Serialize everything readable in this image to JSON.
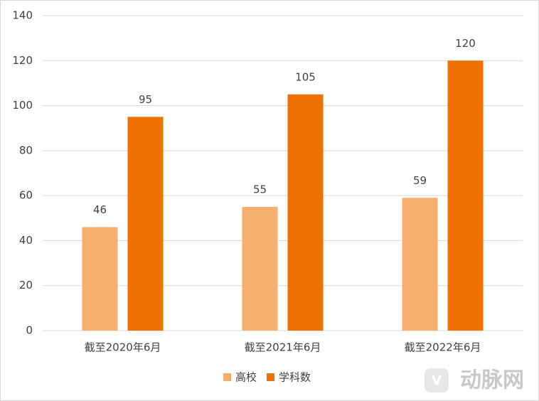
{
  "chart_data": {
    "type": "bar",
    "categories": [
      "截至2020年6月",
      "截至2021年6月",
      "截至2022年6月"
    ],
    "series": [
      {
        "name": "高校",
        "color": "#f6ae6e",
        "values": [
          46,
          55,
          59
        ]
      },
      {
        "name": "学科数",
        "color": "#ed7103",
        "values": [
          95,
          105,
          120
        ]
      }
    ],
    "ylim": [
      0,
      140
    ],
    "yticks": [
      0,
      20,
      40,
      60,
      80,
      100,
      120,
      140
    ],
    "grid": true,
    "legend": "bottom",
    "watermark": "动脉网"
  }
}
